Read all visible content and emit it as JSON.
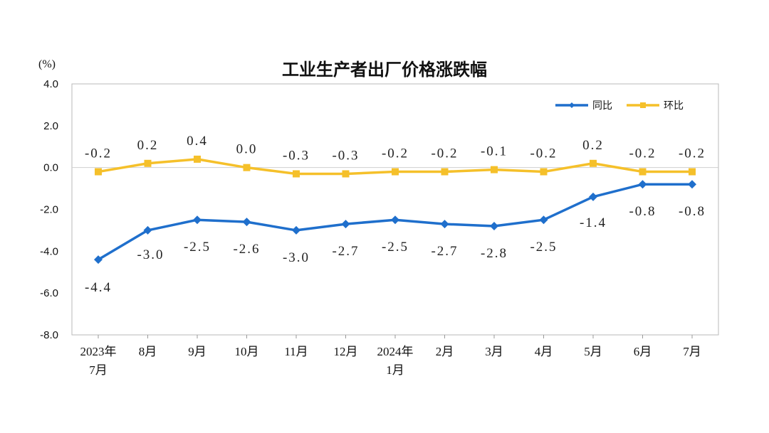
{
  "chart_data": {
    "type": "line",
    "title": "工业生产者出厂价格涨跌幅",
    "unit": "(%)",
    "categories": [
      [
        "2023年",
        "7月"
      ],
      [
        "8月"
      ],
      [
        "9月"
      ],
      [
        "10月"
      ],
      [
        "11月"
      ],
      [
        "12月"
      ],
      [
        "2024年",
        "1月"
      ],
      [
        "2月"
      ],
      [
        "3月"
      ],
      [
        "4月"
      ],
      [
        "5月"
      ],
      [
        "6月"
      ],
      [
        "7月"
      ]
    ],
    "ylim": [
      -8,
      4
    ],
    "yticks": [
      "4.0",
      "2.0",
      "0.0",
      "-2.0",
      "-4.0",
      "-6.0",
      "-8.0"
    ],
    "ytick_values": [
      4,
      2,
      0,
      -2,
      -4,
      -6,
      -8
    ],
    "legend_position": "top-right",
    "grid": false,
    "series": [
      {
        "name": "同比",
        "color": "#1f6fcc",
        "marker": "diamond",
        "values": [
          -4.4,
          -3.0,
          -2.5,
          -2.6,
          -3.0,
          -2.7,
          -2.5,
          -2.7,
          -2.8,
          -2.5,
          -1.4,
          -0.8,
          -0.8
        ],
        "labels": [
          "-4.4",
          "-3.0",
          "-2.5",
          "-2.6",
          "-3.0",
          "-2.7",
          "-2.5",
          "-2.7",
          "-2.8",
          "-2.5",
          "-1.4",
          "-0.8",
          "-0.8"
        ]
      },
      {
        "name": "环比",
        "color": "#f5c02a",
        "marker": "square",
        "values": [
          -0.2,
          0.2,
          0.4,
          0.0,
          -0.3,
          -0.3,
          -0.2,
          -0.2,
          -0.1,
          -0.2,
          0.2,
          -0.2,
          -0.2
        ],
        "labels": [
          "-0.2",
          "0.2",
          "0.4",
          "0.0",
          "-0.3",
          "-0.3",
          "-0.2",
          "-0.2",
          "-0.1",
          "-0.2",
          "0.2",
          "-0.2",
          "-0.2"
        ]
      }
    ]
  }
}
